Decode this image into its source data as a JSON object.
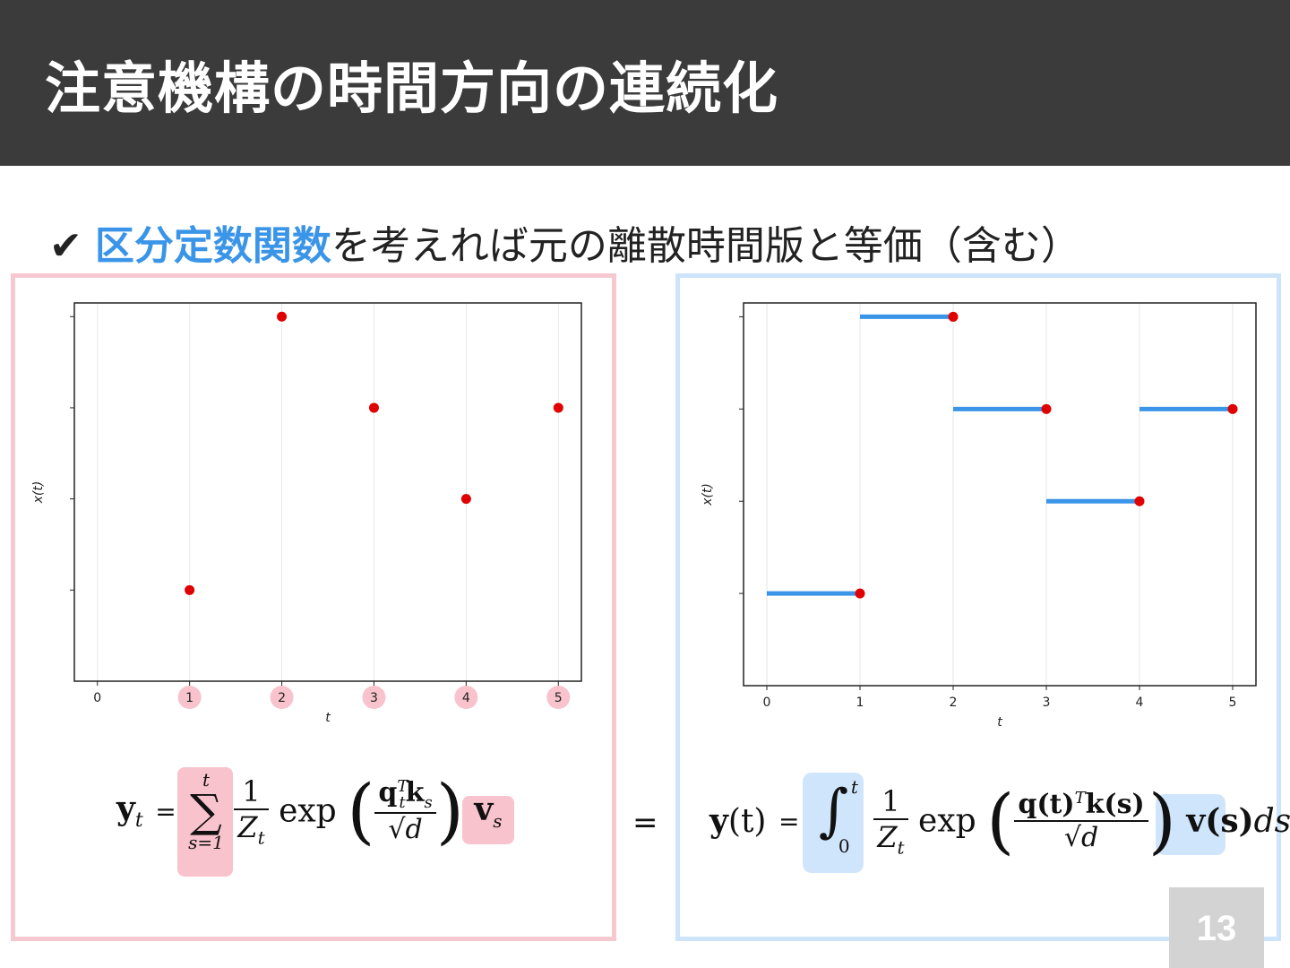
{
  "slide": {
    "title": "注意機構の時間方向の連続化",
    "bullet_check": "✔",
    "bullet_highlight": "区分定数関数",
    "bullet_rest": "を考えれば元の離散時間版と等価（含む）",
    "page_number": "13",
    "equals_sign": "="
  },
  "colors": {
    "title_bg": "#3b3b3b",
    "highlight_blue": "#3a95e8",
    "panel_pink": "#f6c9d1",
    "panel_blue": "#cde4fb",
    "point_red": "#e00000",
    "step_blue": "#3a95e8",
    "tick_circle_pink": "#f8c3cc"
  },
  "equations": {
    "left": {
      "lhs": "y",
      "lhs_sub": "t",
      "sum_top": "t",
      "sum_symbol": "∑",
      "sum_bottom": "s=1",
      "frac_num": "1",
      "frac_den": "Z",
      "frac_den_sub": "t",
      "exp": "exp",
      "inner_num_q": "q",
      "inner_num_q_sup": "T",
      "inner_num_q_sub": "t",
      "inner_num_k": "k",
      "inner_num_k_sub": "s",
      "inner_den": "√d",
      "v": "v",
      "v_sub": "s"
    },
    "right": {
      "lhs": "y",
      "lhs_arg": "(t)",
      "int_top": "t",
      "int_symbol": "∫",
      "int_bottom": "0",
      "frac_num": "1",
      "frac_den": "Z",
      "frac_den_sub": "t",
      "exp": "exp",
      "inner_num": "q(t)",
      "inner_num_sup": "T",
      "inner_num_k": "k(s)",
      "inner_den": "√d",
      "v": "v(s)",
      "ds": "ds"
    }
  },
  "chart_data": [
    {
      "type": "scatter",
      "title": "",
      "xlabel": "t",
      "ylabel": "x(t)",
      "x_ticks": [
        0,
        1,
        2,
        3,
        4,
        5
      ],
      "highlighted_ticks": [
        1,
        2,
        3,
        4,
        5
      ],
      "xlim": [
        -0.25,
        5.25
      ],
      "ylim": [
        0,
        4.15
      ],
      "y_tick_labels_shown": false,
      "grid": "vertical",
      "series": [
        {
          "points": [
            [
              1,
              1
            ],
            [
              2,
              4
            ],
            [
              3,
              3
            ],
            [
              4,
              2
            ],
            [
              5,
              3
            ]
          ]
        }
      ]
    },
    {
      "type": "line",
      "subtype": "step",
      "title": "",
      "xlabel": "t",
      "ylabel": "x(t)",
      "x_ticks": [
        0,
        1,
        2,
        3,
        4,
        5
      ],
      "xlim": [
        -0.25,
        5.25
      ],
      "ylim": [
        0,
        4.15
      ],
      "y_tick_labels_shown": false,
      "grid": "vertical",
      "series": [
        {
          "segments": [
            [
              0,
              1,
              1
            ],
            [
              1,
              2,
              4
            ],
            [
              2,
              3,
              3
            ],
            [
              3,
              4,
              2
            ],
            [
              4,
              5,
              3
            ]
          ],
          "points": [
            [
              1,
              1
            ],
            [
              2,
              4
            ],
            [
              3,
              3
            ],
            [
              4,
              2
            ],
            [
              5,
              3
            ]
          ]
        }
      ]
    }
  ]
}
